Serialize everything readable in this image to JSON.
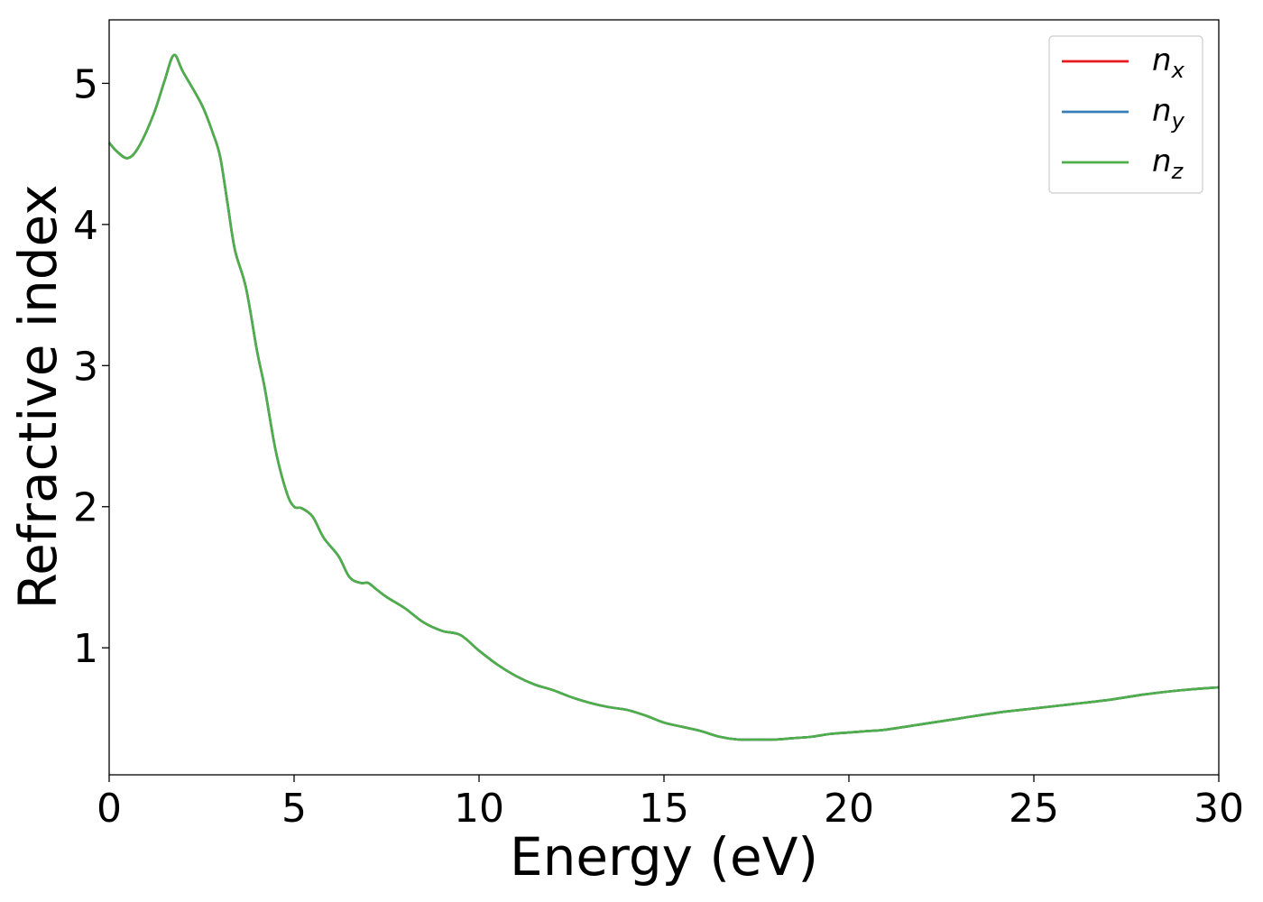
{
  "chart_data": {
    "type": "line",
    "title": "",
    "xlabel": "Energy (eV)",
    "ylabel": "Refractive index",
    "xlim": [
      0,
      30
    ],
    "ylim": [
      0.1,
      5.45
    ],
    "x_ticks": [
      0,
      5,
      10,
      15,
      20,
      25,
      30
    ],
    "y_ticks": [
      1,
      2,
      3,
      4,
      5
    ],
    "grid": false,
    "legend_position": "top-right",
    "x": [
      0,
      0.2,
      0.5,
      0.8,
      1.2,
      1.5,
      1.75,
      2.0,
      2.5,
      2.8,
      3.0,
      3.2,
      3.4,
      3.7,
      4.0,
      4.2,
      4.5,
      4.8,
      5.0,
      5.2,
      5.5,
      5.8,
      6.2,
      6.5,
      6.8,
      7.0,
      7.2,
      7.5,
      8.0,
      8.5,
      9.0,
      9.5,
      10.0,
      10.5,
      11.0,
      11.5,
      12.0,
      12.5,
      13.0,
      13.5,
      14.0,
      14.5,
      15.0,
      15.5,
      16.0,
      16.5,
      17.0,
      17.5,
      18.0,
      18.5,
      19.0,
      19.5,
      20.0,
      20.5,
      21.0,
      22.0,
      23.0,
      24.0,
      25.0,
      26.0,
      27.0,
      28.0,
      29.0,
      30.0
    ],
    "series": [
      {
        "name": "n_x",
        "color": "#e41a1c",
        "values": [
          4.58,
          4.52,
          4.47,
          4.55,
          4.78,
          5.02,
          5.2,
          5.08,
          4.85,
          4.65,
          4.48,
          4.15,
          3.82,
          3.55,
          3.1,
          2.85,
          2.4,
          2.1,
          2.0,
          1.99,
          1.93,
          1.78,
          1.65,
          1.5,
          1.46,
          1.46,
          1.42,
          1.36,
          1.28,
          1.18,
          1.12,
          1.09,
          0.98,
          0.88,
          0.8,
          0.74,
          0.7,
          0.65,
          0.61,
          0.58,
          0.56,
          0.52,
          0.47,
          0.44,
          0.41,
          0.37,
          0.35,
          0.35,
          0.35,
          0.36,
          0.37,
          0.39,
          0.4,
          0.41,
          0.42,
          0.46,
          0.5,
          0.54,
          0.57,
          0.6,
          0.63,
          0.67,
          0.7,
          0.72
        ]
      },
      {
        "name": "n_y",
        "color": "#377eb8",
        "values": [
          4.58,
          4.52,
          4.47,
          4.55,
          4.78,
          5.02,
          5.2,
          5.08,
          4.85,
          4.65,
          4.48,
          4.15,
          3.82,
          3.55,
          3.1,
          2.85,
          2.4,
          2.1,
          2.0,
          1.99,
          1.93,
          1.78,
          1.65,
          1.5,
          1.46,
          1.46,
          1.42,
          1.36,
          1.28,
          1.18,
          1.12,
          1.09,
          0.98,
          0.88,
          0.8,
          0.74,
          0.7,
          0.65,
          0.61,
          0.58,
          0.56,
          0.52,
          0.47,
          0.44,
          0.41,
          0.37,
          0.35,
          0.35,
          0.35,
          0.36,
          0.37,
          0.39,
          0.4,
          0.41,
          0.42,
          0.46,
          0.5,
          0.54,
          0.57,
          0.6,
          0.63,
          0.67,
          0.7,
          0.72
        ]
      },
      {
        "name": "n_z",
        "color": "#4daf4a",
        "values": [
          4.58,
          4.52,
          4.47,
          4.55,
          4.78,
          5.02,
          5.2,
          5.08,
          4.85,
          4.65,
          4.48,
          4.15,
          3.82,
          3.55,
          3.1,
          2.85,
          2.4,
          2.1,
          2.0,
          1.99,
          1.93,
          1.78,
          1.65,
          1.5,
          1.46,
          1.46,
          1.42,
          1.36,
          1.28,
          1.18,
          1.12,
          1.09,
          0.98,
          0.88,
          0.8,
          0.74,
          0.7,
          0.65,
          0.61,
          0.58,
          0.56,
          0.52,
          0.47,
          0.44,
          0.41,
          0.37,
          0.35,
          0.35,
          0.35,
          0.36,
          0.37,
          0.39,
          0.4,
          0.41,
          0.42,
          0.46,
          0.5,
          0.54,
          0.57,
          0.6,
          0.63,
          0.67,
          0.7,
          0.72
        ]
      }
    ],
    "legend": [
      {
        "base": "n",
        "sub": "x",
        "color": "#e41a1c"
      },
      {
        "base": "n",
        "sub": "y",
        "color": "#377eb8"
      },
      {
        "base": "n",
        "sub": "z",
        "color": "#4daf4a"
      }
    ]
  }
}
